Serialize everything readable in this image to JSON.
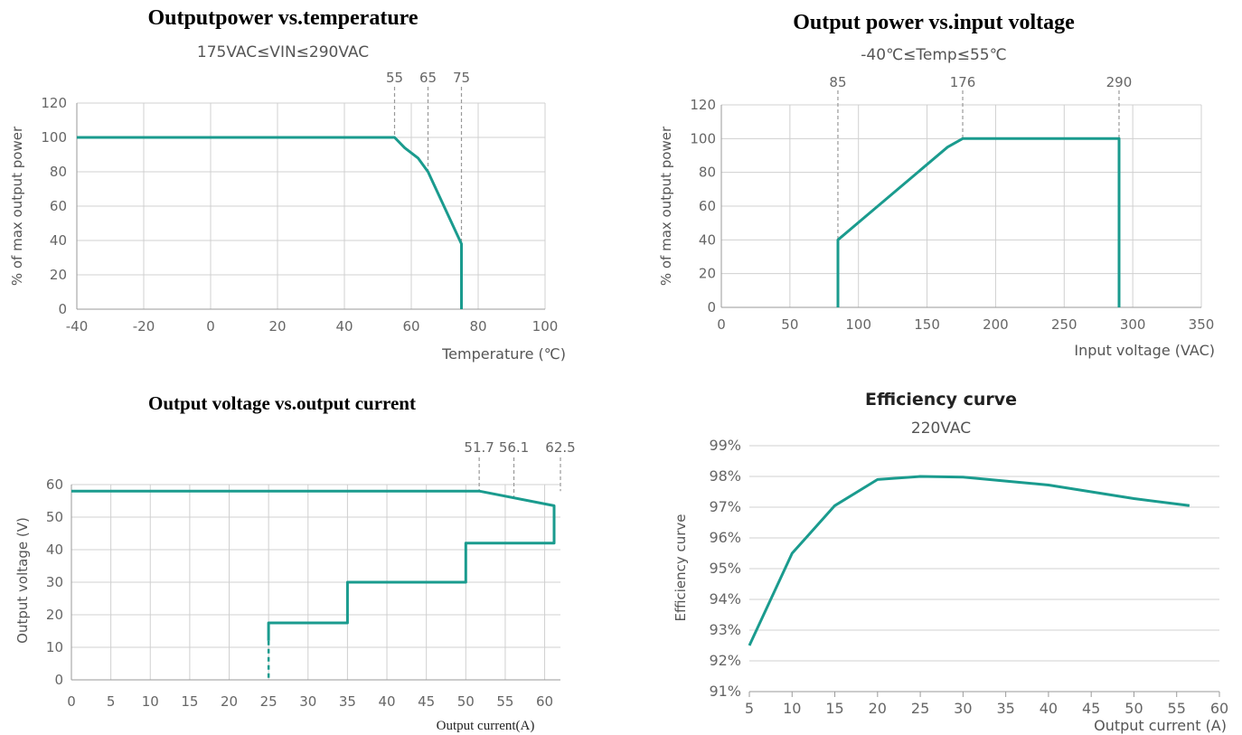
{
  "chart_data": [
    {
      "type": "line",
      "title": "Outputpower vs.temperature",
      "subtitle": "175VAC≤VIN≤290VAC",
      "xlabel": "Temperature (℃)",
      "ylabel": "% of max output power",
      "xlim": [
        -40,
        100
      ],
      "ylim": [
        0,
        120
      ],
      "xticks": [
        -40,
        -20,
        0,
        20,
        40,
        60,
        80,
        100
      ],
      "yticks": [
        0,
        20,
        40,
        60,
        80,
        100,
        120
      ],
      "grid": true,
      "markers": [
        {
          "x": 55,
          "label": "55"
        },
        {
          "x": 65,
          "label": "65"
        },
        {
          "x": 75,
          "label": "75"
        }
      ],
      "series": [
        {
          "points": [
            [
              -40,
              100
            ],
            [
              55,
              100
            ],
            [
              58,
              94
            ],
            [
              62,
              88
            ],
            [
              65,
              80
            ],
            [
              75,
              38
            ],
            [
              75,
              0
            ]
          ]
        }
      ]
    },
    {
      "type": "line",
      "title": "Output power vs.input voltage",
      "subtitle": "-40℃≤Temp≤55℃",
      "xlabel": "Input voltage (VAC)",
      "ylabel": "% of max output power",
      "xlim": [
        0,
        350
      ],
      "ylim": [
        0,
        120
      ],
      "xticks": [
        0,
        50,
        100,
        150,
        200,
        250,
        300,
        350
      ],
      "yticks": [
        0,
        20,
        40,
        60,
        80,
        100,
        120
      ],
      "grid": true,
      "markers": [
        {
          "x": 85,
          "label": "85"
        },
        {
          "x": 176,
          "label": "176"
        },
        {
          "x": 290,
          "label": "290"
        }
      ],
      "series": [
        {
          "points": [
            [
              85,
              0
            ],
            [
              85,
              40
            ],
            [
              165,
              95
            ],
            [
              176,
              100
            ],
            [
              290,
              100
            ],
            [
              290,
              0
            ]
          ]
        }
      ]
    },
    {
      "type": "line",
      "title": "Output voltage vs.output current",
      "xlabel": "Output  current(A)",
      "ylabel": "Output voltage (V)",
      "xlim": [
        0,
        62
      ],
      "ylim": [
        0,
        60
      ],
      "xticks": [
        0,
        5,
        10,
        15,
        20,
        25,
        30,
        35,
        40,
        45,
        50,
        55,
        60
      ],
      "yticks": [
        0,
        10,
        20,
        30,
        40,
        50,
        60
      ],
      "grid": true,
      "markers": [
        {
          "x": 51.7,
          "label": "51.7"
        },
        {
          "x": 56.1,
          "label": "56.1"
        },
        {
          "x": 62.5,
          "label": "62.5"
        }
      ],
      "series": [
        {
          "points": [
            [
              0,
              58
            ],
            [
              51.7,
              58
            ],
            [
              61.2,
              53.5
            ],
            [
              61.2,
              42
            ],
            [
              50,
              42
            ],
            [
              50,
              30
            ],
            [
              35,
              30
            ],
            [
              35,
              17.5
            ],
            [
              25,
              17.5
            ],
            [
              25,
              12
            ]
          ]
        }
      ],
      "dashed_segment": [
        [
          25,
          12
        ],
        [
          25,
          0
        ]
      ]
    },
    {
      "type": "line",
      "title": "Efficiency curve",
      "subtitle": "220VAC",
      "xlabel": "Output current (A)",
      "ylabel": "Efficiency curve",
      "xlim": [
        5,
        60
      ],
      "ylim": [
        91,
        99
      ],
      "xticks": [
        5,
        10,
        15,
        20,
        25,
        30,
        35,
        40,
        45,
        50,
        55,
        60
      ],
      "yticks": [
        91,
        92,
        93,
        94,
        95,
        96,
        97,
        98,
        99
      ],
      "ytick_labels": [
        "91%",
        "92%",
        "93%",
        "94%",
        "95%",
        "96%",
        "97%",
        "98%",
        "99%"
      ],
      "grid": true,
      "series": [
        {
          "points": [
            [
              5,
              92.5
            ],
            [
              10,
              95.5
            ],
            [
              15,
              97.05
            ],
            [
              20,
              97.9
            ],
            [
              25,
              98.0
            ],
            [
              30,
              97.98
            ],
            [
              35,
              97.85
            ],
            [
              40,
              97.72
            ],
            [
              45,
              97.5
            ],
            [
              50,
              97.28
            ],
            [
              56.5,
              97.05
            ]
          ]
        }
      ]
    }
  ]
}
